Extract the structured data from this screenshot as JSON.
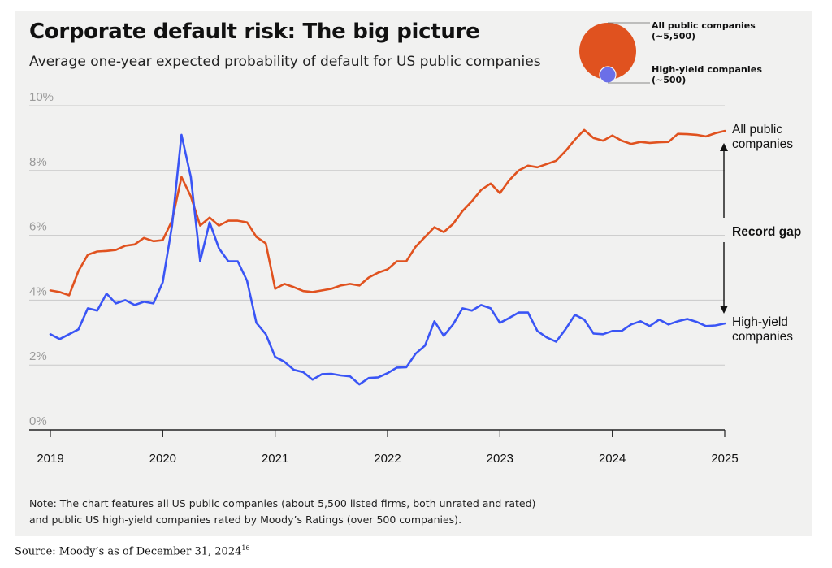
{
  "title": "Corporate default risk: The big picture",
  "subtitle": "Average one-year expected probability of default for US public companies",
  "note_line1": "Note: The chart features all US public companies (about 5,500 listed firms, both unrated and rated)",
  "note_line2": "and public US high-yield companies rated by Moody’s Ratings (over 500 companies).",
  "source": "Source: Moody’s as of December 31, 2024",
  "source_sup": "16",
  "bubble_legend": {
    "large_label_1": "All public companies",
    "large_label_2": "(~5,500)",
    "small_label_1": "High-yield companies",
    "small_label_2": "(~500)",
    "large_color": "#e0521f",
    "small_color": "#6b6fe8"
  },
  "chart_data": {
    "type": "line",
    "y_tick_labels": [
      "0%",
      "2%",
      "4%",
      "6%",
      "8%",
      "10%"
    ],
    "x_tick_labels": [
      "2019",
      "2020",
      "2021",
      "2022",
      "2023",
      "2024",
      "2025"
    ],
    "ylim": [
      0,
      10
    ],
    "xlim": [
      2019,
      2025
    ],
    "grid": true,
    "series": [
      {
        "name": "All public companies",
        "label_line1": "All public",
        "label_line2": "companies",
        "color": "#e0521f",
        "x": [
          2019.0,
          2019.083,
          2019.167,
          2019.25,
          2019.333,
          2019.417,
          2019.5,
          2019.583,
          2019.667,
          2019.75,
          2019.833,
          2019.917,
          2020.0,
          2020.083,
          2020.167,
          2020.25,
          2020.333,
          2020.417,
          2020.5,
          2020.583,
          2020.667,
          2020.75,
          2020.833,
          2020.917,
          2021.0,
          2021.083,
          2021.167,
          2021.25,
          2021.333,
          2021.417,
          2021.5,
          2021.583,
          2021.667,
          2021.75,
          2021.833,
          2021.917,
          2022.0,
          2022.083,
          2022.167,
          2022.25,
          2022.333,
          2022.417,
          2022.5,
          2022.583,
          2022.667,
          2022.75,
          2022.833,
          2022.917,
          2023.0,
          2023.083,
          2023.167,
          2023.25,
          2023.333,
          2023.417,
          2023.5,
          2023.583,
          2023.667,
          2023.75,
          2023.833,
          2023.917,
          2024.0,
          2024.083,
          2024.167,
          2024.25,
          2024.333,
          2024.417,
          2024.5,
          2024.583,
          2024.667,
          2024.75,
          2024.833,
          2024.917,
          2025.0
        ],
        "y": [
          4.3,
          4.25,
          4.15,
          4.9,
          5.4,
          5.5,
          5.52,
          5.55,
          5.68,
          5.72,
          5.92,
          5.82,
          5.85,
          6.45,
          7.8,
          7.2,
          6.3,
          6.55,
          6.3,
          6.45,
          6.45,
          6.4,
          5.95,
          5.75,
          4.35,
          4.5,
          4.4,
          4.28,
          4.25,
          4.3,
          4.35,
          4.45,
          4.5,
          4.45,
          4.7,
          4.85,
          4.95,
          5.2,
          5.2,
          5.65,
          5.95,
          6.25,
          6.1,
          6.35,
          6.75,
          7.05,
          7.4,
          7.6,
          7.3,
          7.7,
          8.0,
          8.15,
          8.1,
          8.2,
          8.3,
          8.6,
          8.95,
          9.25,
          9.0,
          8.92,
          9.08,
          8.92,
          8.82,
          8.88,
          8.85,
          8.87,
          8.88,
          9.13,
          9.12,
          9.1,
          9.05,
          9.15,
          9.22
        ]
      },
      {
        "name": "High-yield companies",
        "label_line1": "High-yield",
        "label_line2": "companies",
        "color": "#3a55f5",
        "x": [
          2019.0,
          2019.083,
          2019.167,
          2019.25,
          2019.333,
          2019.417,
          2019.5,
          2019.583,
          2019.667,
          2019.75,
          2019.833,
          2019.917,
          2020.0,
          2020.083,
          2020.167,
          2020.25,
          2020.333,
          2020.417,
          2020.5,
          2020.583,
          2020.667,
          2020.75,
          2020.833,
          2020.917,
          2021.0,
          2021.083,
          2021.167,
          2021.25,
          2021.333,
          2021.417,
          2021.5,
          2021.583,
          2021.667,
          2021.75,
          2021.833,
          2021.917,
          2022.0,
          2022.083,
          2022.167,
          2022.25,
          2022.333,
          2022.417,
          2022.5,
          2022.583,
          2022.667,
          2022.75,
          2022.833,
          2022.917,
          2023.0,
          2023.083,
          2023.167,
          2023.25,
          2023.333,
          2023.417,
          2023.5,
          2023.583,
          2023.667,
          2023.75,
          2023.833,
          2023.917,
          2024.0,
          2024.083,
          2024.167,
          2024.25,
          2024.333,
          2024.417,
          2024.5,
          2024.583,
          2024.667,
          2024.75,
          2024.833,
          2024.917,
          2025.0
        ],
        "y": [
          2.95,
          2.8,
          2.95,
          3.1,
          3.75,
          3.68,
          4.2,
          3.9,
          4.0,
          3.85,
          3.95,
          3.9,
          4.55,
          6.3,
          9.1,
          7.8,
          5.2,
          6.4,
          5.6,
          5.2,
          5.2,
          4.6,
          3.3,
          2.95,
          2.25,
          2.1,
          1.85,
          1.78,
          1.55,
          1.72,
          1.73,
          1.68,
          1.65,
          1.4,
          1.6,
          1.62,
          1.75,
          1.92,
          1.93,
          2.35,
          2.6,
          3.35,
          2.9,
          3.25,
          3.75,
          3.68,
          3.85,
          3.75,
          3.3,
          3.45,
          3.62,
          3.62,
          3.05,
          2.85,
          2.72,
          3.1,
          3.55,
          3.4,
          2.97,
          2.95,
          3.05,
          3.05,
          3.25,
          3.35,
          3.2,
          3.4,
          3.25,
          3.35,
          3.42,
          3.33,
          3.2,
          3.22,
          3.28
        ]
      }
    ],
    "annotation": "Record gap"
  }
}
